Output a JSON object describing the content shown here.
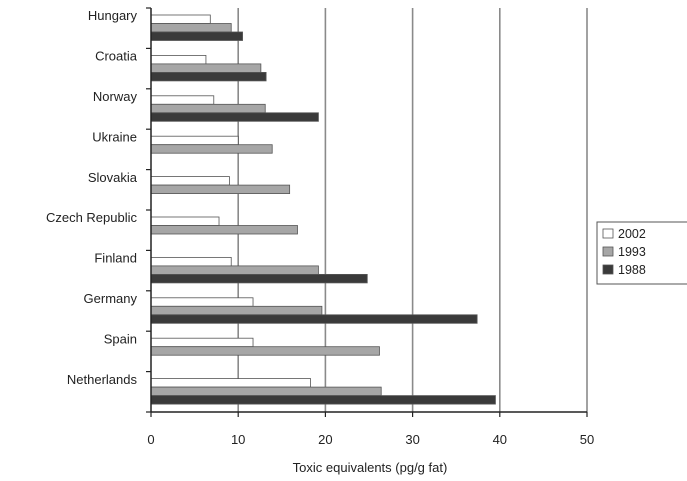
{
  "chart_data": {
    "type": "bar",
    "orientation": "horizontal",
    "title": "",
    "xlabel": "Toxic equivalents (pg/g fat)",
    "ylabel": "",
    "xlim": [
      0,
      50
    ],
    "xticks": [
      0,
      10,
      20,
      30,
      40,
      50
    ],
    "grid": "vertical",
    "legend_position": "right",
    "categories": [
      "Hungary",
      "Croatia",
      "Norway",
      "Ukraine",
      "Slovakia",
      "Czech Republic",
      "Finland",
      "Germany",
      "Spain",
      "Netherlands"
    ],
    "series": [
      {
        "name": "2002",
        "color": "#ffffff",
        "values": [
          6.8,
          6.3,
          7.2,
          10.0,
          9.0,
          7.8,
          9.2,
          11.7,
          11.7,
          18.3
        ]
      },
      {
        "name": "1993",
        "color": "#a6a6a6",
        "values": [
          9.2,
          12.6,
          13.1,
          13.9,
          15.9,
          16.8,
          19.2,
          19.6,
          26.2,
          26.4
        ]
      },
      {
        "name": "1988",
        "color": "#3a3a3a",
        "values": [
          10.5,
          13.2,
          19.2,
          null,
          null,
          null,
          24.8,
          37.4,
          null,
          39.5
        ]
      }
    ]
  }
}
